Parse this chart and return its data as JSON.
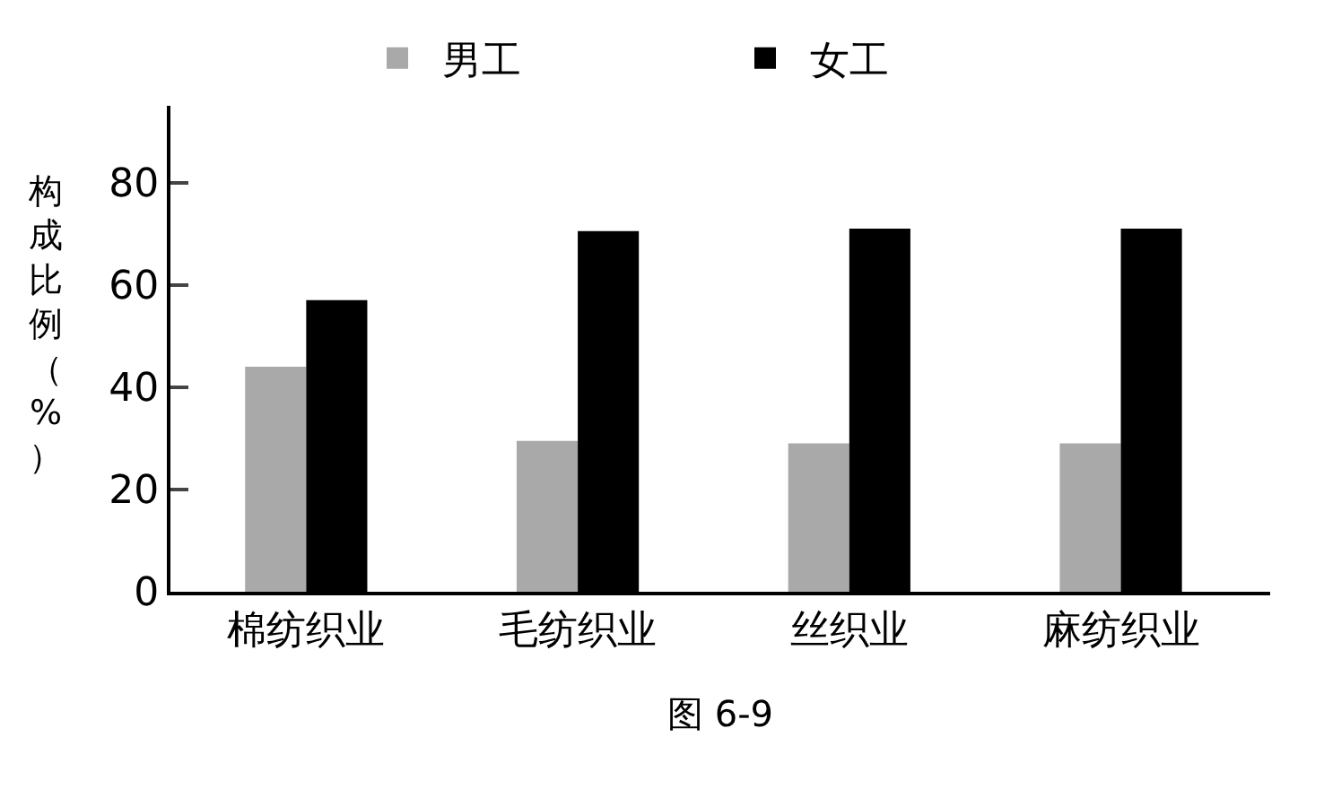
{
  "chart_data": {
    "type": "bar",
    "categories": [
      "棉纺织业",
      "毛纺织业",
      "丝织业",
      "麻纺织业"
    ],
    "series": [
      {
        "name": "男工",
        "color": "#a9a9a9",
        "values": [
          44,
          29.5,
          29,
          29
        ]
      },
      {
        "name": "女工",
        "color": "#000000",
        "values": [
          57,
          70.5,
          71,
          71
        ]
      }
    ],
    "ylabel": "构成比例（%）",
    "ylim": [
      0,
      95
    ],
    "yticks": [
      0,
      20,
      40,
      60,
      80
    ],
    "legend": "top",
    "annotations": [
      "图 6-9"
    ]
  }
}
